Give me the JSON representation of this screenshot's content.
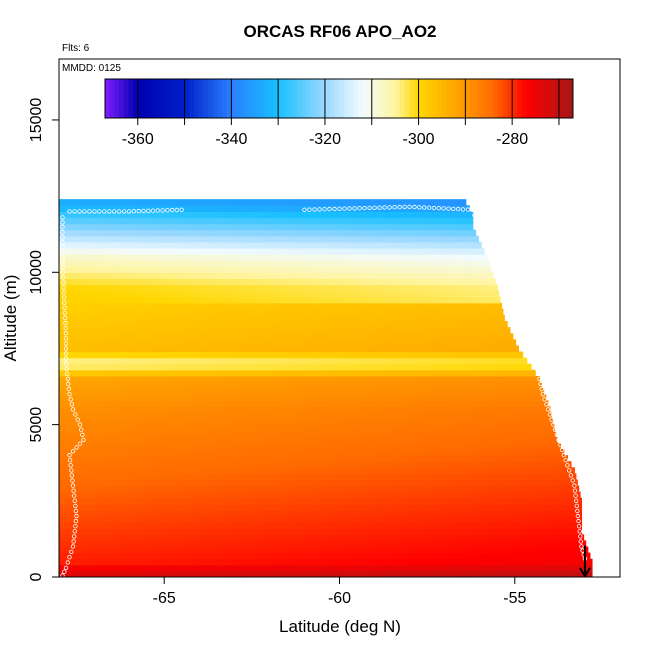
{
  "chart_data": {
    "type": "heatmap",
    "title": "ORCAS RF06 APO_AO2",
    "note_flights": "Flts: 6",
    "note_date": "MMDD: 0125",
    "xlabel": "Latitude (deg N)",
    "ylabel": "Altitude (m)",
    "xlim": [
      -68,
      -52
    ],
    "ylim": [
      0,
      17000
    ],
    "x_ticks": [
      -65,
      -60,
      -55
    ],
    "x_tick_labels": [
      "-65",
      "-60",
      "-55"
    ],
    "y_ticks": [
      0,
      5000,
      10000,
      15000
    ],
    "y_tick_labels": [
      "0",
      "5000",
      "10000",
      "15000"
    ],
    "colorbar": {
      "range": [
        -367,
        -267
      ],
      "ticks": [
        -360,
        -340,
        -320,
        -300,
        -280
      ],
      "tick_labels": [
        "-360",
        "-340",
        "-320",
        "-300",
        "-280"
      ],
      "stops": [
        {
          "v": -367,
          "c": "#7f1fff"
        },
        {
          "v": -360,
          "c": "#0000b0"
        },
        {
          "v": -350,
          "c": "#0020c8"
        },
        {
          "v": -340,
          "c": "#2a7fff"
        },
        {
          "v": -330,
          "c": "#18c0ff"
        },
        {
          "v": -320,
          "c": "#9ad8ff"
        },
        {
          "v": -312,
          "c": "#f2fbff"
        },
        {
          "v": -305,
          "c": "#fff5a0"
        },
        {
          "v": -300,
          "c": "#ffd700"
        },
        {
          "v": -292,
          "c": "#ffa500"
        },
        {
          "v": -284,
          "c": "#ff6a00"
        },
        {
          "v": -277,
          "c": "#ff0000"
        },
        {
          "v": -270,
          "c": "#c01010"
        },
        {
          "v": -267,
          "c": "#a01818"
        }
      ]
    },
    "field_profile": [
      {
        "alt": 0,
        "lat_max": -52.8,
        "apo": -272
      },
      {
        "alt": 500,
        "lat_max": -52.8,
        "apo": -279
      },
      {
        "alt": 1500,
        "lat_max": -53.1,
        "apo": -281
      },
      {
        "alt": 2500,
        "lat_max": -53.1,
        "apo": -283
      },
      {
        "alt": 3500,
        "lat_max": -53.3,
        "apo": -285
      },
      {
        "alt": 4500,
        "lat_max": -53.8,
        "apo": -287
      },
      {
        "alt": 5500,
        "lat_max": -54.0,
        "apo": -289
      },
      {
        "alt": 6500,
        "lat_max": -54.3,
        "apo": -292
      },
      {
        "alt": 7000,
        "lat_max": -54.6,
        "apo": -306
      },
      {
        "alt": 7500,
        "lat_max": -54.9,
        "apo": -296
      },
      {
        "alt": 8500,
        "lat_max": -55.3,
        "apo": -298
      },
      {
        "alt": 9500,
        "lat_max": -55.5,
        "apo": -300
      },
      {
        "alt": 10500,
        "lat_max": -55.8,
        "apo": -308
      },
      {
        "alt": 11000,
        "lat_max": -56.0,
        "apo": -315
      },
      {
        "alt": 11500,
        "lat_max": -56.2,
        "apo": -322
      },
      {
        "alt": 12000,
        "lat_max": -56.2,
        "apo": -329
      },
      {
        "alt": 12200,
        "lat_max": -56.4,
        "apo": -333
      }
    ],
    "flight_track": [
      [
        -67.7,
        12000
      ],
      [
        -66.0,
        12000
      ],
      [
        -64.5,
        12050
      ],
      [
        -61.0,
        12050
      ],
      [
        -58.0,
        12150
      ],
      [
        -56.2,
        12050
      ],
      [
        -56.1,
        11700
      ],
      [
        -67.9,
        11800
      ],
      [
        -67.9,
        10500
      ],
      [
        -67.85,
        9000
      ],
      [
        -67.8,
        8000
      ],
      [
        -67.8,
        7000
      ],
      [
        -67.7,
        6000
      ],
      [
        -67.6,
        5500
      ],
      [
        -67.4,
        5000
      ],
      [
        -67.3,
        4500
      ],
      [
        -67.7,
        4000
      ],
      [
        -67.6,
        3000
      ],
      [
        -67.5,
        2000
      ],
      [
        -67.6,
        1000
      ],
      [
        -67.8,
        300
      ],
      [
        -67.9,
        50
      ],
      [
        -55.0,
        9800
      ],
      [
        -54.7,
        8200
      ],
      [
        -54.4,
        7000
      ],
      [
        -54.2,
        6000
      ],
      [
        -53.9,
        5000
      ],
      [
        -53.6,
        4000
      ],
      [
        -53.3,
        3000
      ],
      [
        -53.2,
        2000
      ],
      [
        -53.1,
        1000
      ],
      [
        -53.0,
        600
      ]
    ],
    "flight_end": {
      "lat": -53.0,
      "alt": 700
    }
  }
}
